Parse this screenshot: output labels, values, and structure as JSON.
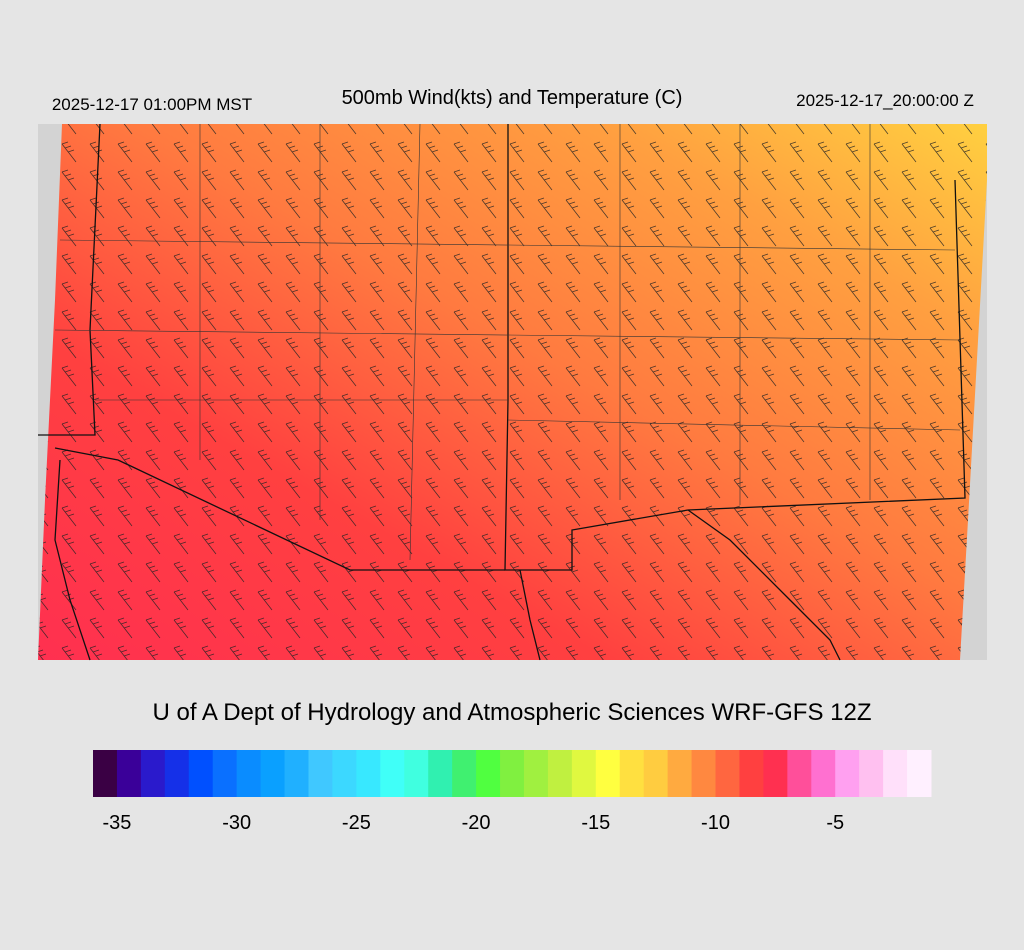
{
  "header": {
    "title": "500mb Wind(kts) and Temperature (C)",
    "local_time": "2025-12-17 01:00PM MST",
    "valid_time": "2025-12-17_20:00:00 Z"
  },
  "credit": "U of A Dept of Hydrology and Atmospheric Sciences WRF-GFS 12Z",
  "colorbar": {
    "range": [
      -36,
      -1
    ],
    "ticks": [
      -35,
      -30,
      -25,
      -20,
      -15,
      -10,
      -5
    ],
    "colors": [
      "#3a0044",
      "#3a0099",
      "#2a1acc",
      "#1530e8",
      "#0050ff",
      "#0a70ff",
      "#0a8cff",
      "#0aa0ff",
      "#20b0ff",
      "#40c8ff",
      "#3cd8ff",
      "#38e8ff",
      "#40fff8",
      "#40ffe0",
      "#30f0b0",
      "#40f070",
      "#50ff40",
      "#80f040",
      "#a0f040",
      "#c0f040",
      "#e0f840",
      "#ffff40",
      "#ffe040",
      "#ffcc40",
      "#ffaa40",
      "#ff8840",
      "#ff6640",
      "#ff4040",
      "#ff3050",
      "#ff4f9a",
      "#ff70d0",
      "#ffa0f0",
      "#ffc0f0",
      "#ffe0fa",
      "#fff0ff"
    ]
  }
}
